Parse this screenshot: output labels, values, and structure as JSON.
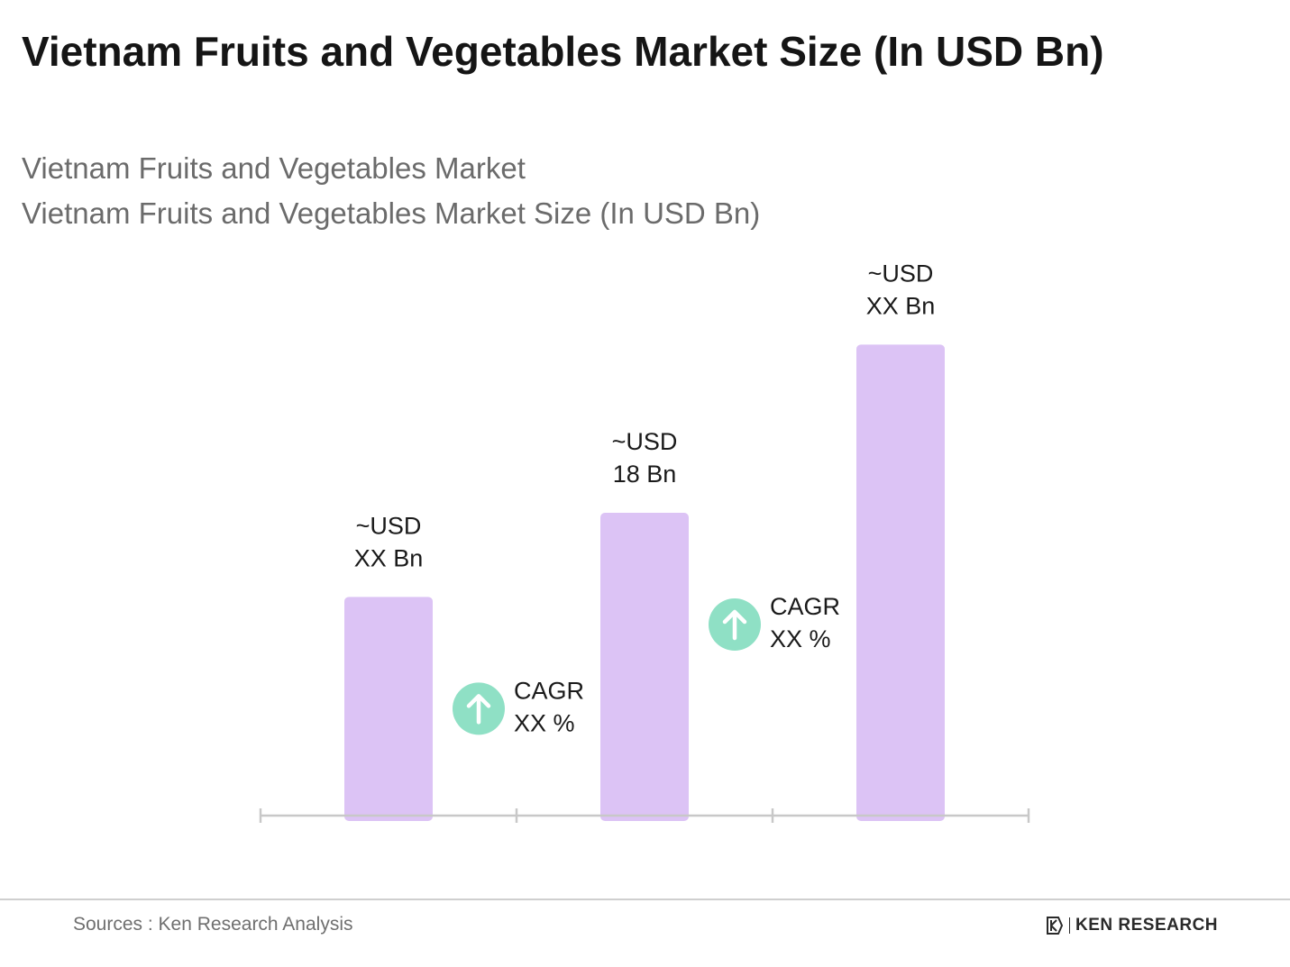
{
  "header": {
    "title": "Vietnam Fruits and Vegetables Market Size (In USD Bn)",
    "subtitle_1": "Vietnam Fruits and Vegetables Market",
    "subtitle_2": "Vietnam Fruits and Vegetables Market Size (In USD Bn)"
  },
  "colors": {
    "bar": "#dcc3f5",
    "axis": "#c8c8c8",
    "cagr_circle": "#8fe0c5",
    "label_text": "#1a1a1a"
  },
  "chart_data": {
    "type": "bar",
    "categories": [
      "",
      "",
      ""
    ],
    "values": [
      13,
      18,
      28
    ],
    "value_labels": [
      [
        "~USD",
        "XX Bn"
      ],
      [
        "~USD",
        "18 Bn"
      ],
      [
        "~USD",
        "XX Bn"
      ]
    ],
    "ylim": [
      0,
      30
    ],
    "grid": false,
    "annotations": [
      {
        "icon": "up-arrow-icon",
        "line1": "CAGR",
        "line2": "XX %",
        "between": [
          0,
          1
        ]
      },
      {
        "icon": "up-arrow-icon",
        "line1": "CAGR",
        "line2": "XX %",
        "between": [
          1,
          2
        ]
      }
    ]
  },
  "footer": {
    "source": "Sources : Ken Research Analysis",
    "brand": "KEN RESEARCH",
    "brand_icon": "ken-research-logo-icon"
  }
}
